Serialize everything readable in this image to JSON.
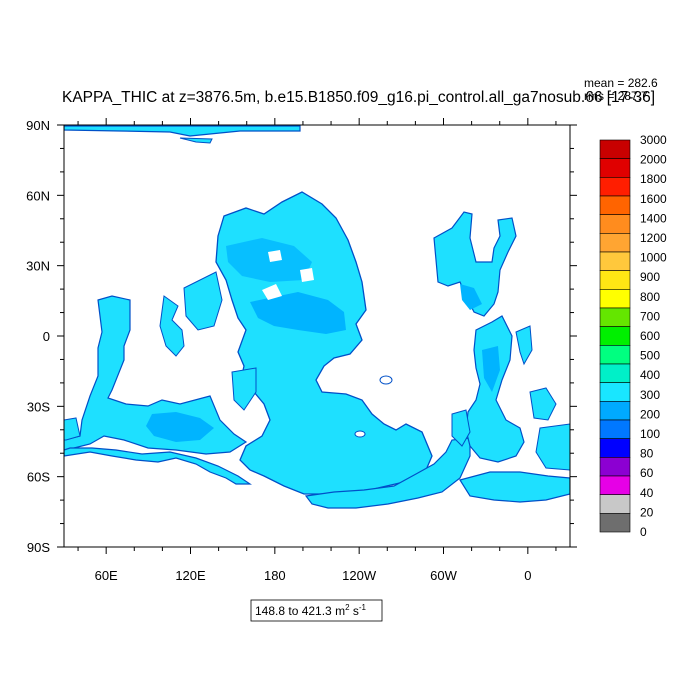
{
  "chart_data": {
    "type": "heatmap",
    "projection": "cylindrical-equidistant",
    "title": "KAPPA_THIC at z=3876.5m, b.e15.B1850.f09_g16.pi_control.all_ga7nosub.66 [17-36]",
    "stats": {
      "mean_label": "mean = 282.6",
      "rms_label": "rms = 287.7"
    },
    "x_tick_labels": [
      "60E",
      "120E",
      "180",
      "120W",
      "60W",
      "0"
    ],
    "x_tick_lons": [
      60,
      120,
      180,
      240,
      300,
      360
    ],
    "y_tick_labels": [
      "90N",
      "60N",
      "30N",
      "0",
      "30S",
      "60S",
      "90S"
    ],
    "y_tick_lats": [
      90,
      60,
      30,
      0,
      -30,
      -60,
      -90
    ],
    "lon_range": [
      30,
      390
    ],
    "lat_range": [
      -90,
      90
    ],
    "range_box": {
      "text": "148.8 to 421.3 m",
      "sup": "2",
      "unit_tail": " s",
      "sup2": "-1"
    },
    "colorbar": {
      "levels": [
        "3000",
        "2000",
        "1800",
        "1600",
        "1400",
        "1200",
        "1000",
        "900",
        "800",
        "700",
        "600",
        "500",
        "400",
        "300",
        "200",
        "100",
        "80",
        "60",
        "40",
        "20",
        "0"
      ],
      "colors": [
        "#c80000",
        "#e00000",
        "#ff1e00",
        "#ff6400",
        "#ff8c1e",
        "#ffa532",
        "#ffc83c",
        "#ffe614",
        "#ffff00",
        "#64e600",
        "#00f000",
        "#00ff80",
        "#00f0c8",
        "#19e6ff",
        "#00aaff",
        "#0078ff",
        "#0000ff",
        "#8c00d2",
        "#e600e6",
        "#c8c8c8",
        "#6e6e6e"
      ]
    },
    "colors": {
      "ocean_fill": "#1ee0ff",
      "ocean_alt": "#00b4ff",
      "contour_edge": "#0050c8",
      "land": "#ffffff"
    }
  }
}
